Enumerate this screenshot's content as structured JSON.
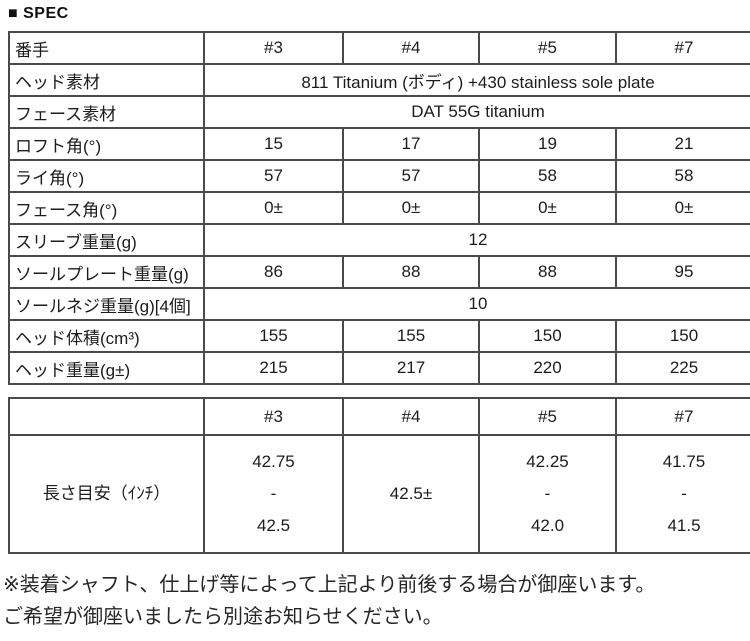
{
  "page": {
    "heading": "■ SPEC"
  },
  "colors": {
    "border": "#4a4a4a",
    "text": "#1c1c1c",
    "background": "#ffffff"
  },
  "spec_table": {
    "columns": [
      "#3",
      "#4",
      "#5",
      "#7"
    ],
    "rows": [
      {
        "label": "番手",
        "values": [
          "#3",
          "#4",
          "#5",
          "#7"
        ]
      },
      {
        "label": "ヘッド素材",
        "value": "811 Titanium (ボディ) +430 stainless sole plate"
      },
      {
        "label": "フェース素材",
        "value": "DAT 55G titanium"
      },
      {
        "label": "ロフト角(°)",
        "values": [
          "15",
          "17",
          "19",
          "21"
        ]
      },
      {
        "label": "ライ角(°)",
        "values": [
          "57",
          "57",
          "58",
          "58"
        ]
      },
      {
        "label": "フェース角(°)",
        "values": [
          "0±",
          "0±",
          "0±",
          "0±"
        ]
      },
      {
        "label": "スリーブ重量(g)",
        "value": "12"
      },
      {
        "label": "ソールプレート重量(g)",
        "values": [
          "86",
          "88",
          "88",
          "95"
        ]
      },
      {
        "label": "ソールネジ重量(g)[4個]",
        "value": "10"
      },
      {
        "label": "ヘッド体積(cm³)",
        "values": [
          "155",
          "155",
          "150",
          "150"
        ]
      },
      {
        "label": "ヘッド重量(g±)",
        "values": [
          "215",
          "217",
          "220",
          "225"
        ]
      }
    ]
  },
  "length_table": {
    "header": [
      "#3",
      "#4",
      "#5",
      "#7"
    ],
    "row_label": "長さ目安（ｲﾝﾁ）",
    "values": [
      [
        "42.75",
        "-",
        "42.5"
      ],
      [
        "42.5±"
      ],
      [
        "42.25",
        "-",
        "42.0"
      ],
      [
        "41.75",
        "-",
        "41.5"
      ]
    ]
  },
  "footer": {
    "line1": "※装着シャフト、仕上げ等によって上記より前後する場合が御座います。",
    "line2": "ご希望が御座いましたら別途お知らせください。"
  }
}
